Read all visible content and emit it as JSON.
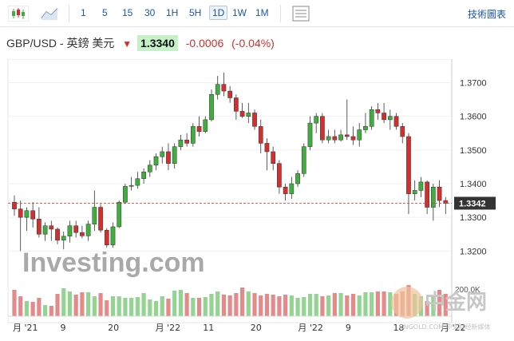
{
  "toolbar": {
    "chart_type_icon": "candlestick-icon",
    "area_icon": "area-chart-icon",
    "intervals": [
      "1",
      "5",
      "15",
      "30",
      "1H",
      "5H",
      "1D",
      "1W",
      "1M"
    ],
    "active_interval": "1D",
    "settings_icon": "grid-settings-icon",
    "technical_label": "技術圖表"
  },
  "quote": {
    "name": "GBP/USD - 英鎊 美元",
    "price": "1.3340",
    "change": "-0.0006",
    "change_pct": "(-0.04%)",
    "direction": "down"
  },
  "colors": {
    "up": "#3fae3f",
    "down": "#d32f2f",
    "vol_up": "#93d493",
    "vol_down": "#e58a8a"
  },
  "watermark": {
    "logo": "Investing.com",
    "site": "中金网",
    "site_sub": "CNGOLD.COM 中文财经新媒体"
  },
  "chart_data": {
    "type": "candlestick",
    "y_ticks": [
      "1.3700",
      "1.3600",
      "1.3500",
      "1.3400",
      "1.3300",
      "1.3200"
    ],
    "ylim": [
      1.317,
      1.377
    ],
    "last_price_label": "1.3342",
    "last_price": 1.3342,
    "volume_label": "200.0K",
    "x_labels": [
      "月 '21",
      "9",
      "20",
      "月 '22",
      "11",
      "20",
      "月 '22",
      "9",
      "18",
      "月 '22"
    ],
    "candles": [
      [
        1.3345,
        1.3365,
        1.3305,
        1.3325
      ],
      [
        1.3325,
        1.335,
        1.32,
        1.33
      ],
      [
        1.33,
        1.333,
        1.326,
        1.332
      ],
      [
        1.332,
        1.3345,
        1.327,
        1.3295
      ],
      [
        1.3295,
        1.333,
        1.324,
        1.325
      ],
      [
        1.325,
        1.3285,
        1.323,
        1.3275
      ],
      [
        1.3275,
        1.329,
        1.323,
        1.3265
      ],
      [
        1.3265,
        1.327,
        1.322,
        1.3232
      ],
      [
        1.3232,
        1.3258,
        1.3205,
        1.3244
      ],
      [
        1.3244,
        1.329,
        1.3225,
        1.3275
      ],
      [
        1.3275,
        1.329,
        1.324,
        1.3255
      ],
      [
        1.3255,
        1.3275,
        1.3238,
        1.3245
      ],
      [
        1.3245,
        1.329,
        1.323,
        1.328
      ],
      [
        1.328,
        1.338,
        1.326,
        1.333
      ],
      [
        1.333,
        1.334,
        1.3255,
        1.3262
      ],
      [
        1.3262,
        1.3268,
        1.321,
        1.3218
      ],
      [
        1.3218,
        1.3285,
        1.321,
        1.3272
      ],
      [
        1.3272,
        1.335,
        1.3268,
        1.3345
      ],
      [
        1.3345,
        1.34,
        1.334,
        1.3392
      ],
      [
        1.3392,
        1.342,
        1.338,
        1.3395
      ],
      [
        1.3395,
        1.3435,
        1.3385,
        1.3415
      ],
      [
        1.3415,
        1.3445,
        1.34,
        1.3435
      ],
      [
        1.3435,
        1.347,
        1.342,
        1.3455
      ],
      [
        1.3455,
        1.349,
        1.344,
        1.348
      ],
      [
        1.348,
        1.351,
        1.346,
        1.3495
      ],
      [
        1.3495,
        1.352,
        1.344,
        1.346
      ],
      [
        1.346,
        1.352,
        1.3445,
        1.351
      ],
      [
        1.351,
        1.3545,
        1.35,
        1.353
      ],
      [
        1.353,
        1.355,
        1.351,
        1.352
      ],
      [
        1.352,
        1.358,
        1.351,
        1.357
      ],
      [
        1.357,
        1.36,
        1.354,
        1.3555
      ],
      [
        1.3555,
        1.36,
        1.355,
        1.359
      ],
      [
        1.359,
        1.368,
        1.3585,
        1.3665
      ],
      [
        1.3665,
        1.372,
        1.365,
        1.3695
      ],
      [
        1.3695,
        1.373,
        1.366,
        1.3675
      ],
      [
        1.3675,
        1.369,
        1.364,
        1.3655
      ],
      [
        1.3655,
        1.3665,
        1.359,
        1.3615
      ],
      [
        1.3615,
        1.364,
        1.3595,
        1.36
      ],
      [
        1.36,
        1.364,
        1.358,
        1.361
      ],
      [
        1.361,
        1.362,
        1.356,
        1.357
      ],
      [
        1.357,
        1.359,
        1.349,
        1.352
      ],
      [
        1.352,
        1.3535,
        1.344,
        1.3495
      ],
      [
        1.3495,
        1.351,
        1.344,
        1.346
      ],
      [
        1.346,
        1.347,
        1.337,
        1.339
      ],
      [
        1.339,
        1.34,
        1.335,
        1.337
      ],
      [
        1.337,
        1.342,
        1.3355,
        1.34
      ],
      [
        1.34,
        1.344,
        1.339,
        1.343
      ],
      [
        1.343,
        1.352,
        1.342,
        1.351
      ],
      [
        1.351,
        1.36,
        1.35,
        1.358
      ],
      [
        1.358,
        1.361,
        1.355,
        1.36
      ],
      [
        1.36,
        1.361,
        1.352,
        1.353
      ],
      [
        1.353,
        1.356,
        1.352,
        1.354
      ],
      [
        1.354,
        1.356,
        1.352,
        1.353
      ],
      [
        1.353,
        1.356,
        1.3525,
        1.3545
      ],
      [
        1.3545,
        1.365,
        1.353,
        1.354
      ],
      [
        1.354,
        1.357,
        1.3515,
        1.353
      ],
      [
        1.353,
        1.358,
        1.351,
        1.356
      ],
      [
        1.356,
        1.361,
        1.355,
        1.357
      ],
      [
        1.357,
        1.363,
        1.356,
        1.362
      ],
      [
        1.362,
        1.364,
        1.359,
        1.361
      ],
      [
        1.361,
        1.364,
        1.358,
        1.359
      ],
      [
        1.359,
        1.362,
        1.356,
        1.36
      ],
      [
        1.36,
        1.361,
        1.356,
        1.357
      ],
      [
        1.357,
        1.358,
        1.352,
        1.354
      ],
      [
        1.354,
        1.355,
        1.331,
        1.337
      ],
      [
        1.337,
        1.341,
        1.335,
        1.338
      ],
      [
        1.338,
        1.342,
        1.336,
        1.3405
      ],
      [
        1.3405,
        1.341,
        1.331,
        1.333
      ],
      [
        1.333,
        1.34,
        1.329,
        1.339
      ],
      [
        1.339,
        1.341,
        1.333,
        1.335
      ],
      [
        1.335,
        1.336,
        1.331,
        1.3342
      ]
    ],
    "volumes": [
      0.66,
      0.5,
      0.38,
      0.36,
      0.46,
      0.28,
      0.26,
      0.56,
      0.7,
      0.62,
      0.54,
      0.6,
      0.6,
      0.5,
      0.58,
      0.4,
      0.5,
      0.5,
      0.46,
      0.46,
      0.48,
      0.58,
      0.42,
      0.38,
      0.5,
      0.44,
      0.64,
      0.66,
      0.58,
      0.46,
      0.46,
      0.48,
      0.56,
      0.62,
      0.54,
      0.52,
      0.58,
      0.72,
      0.62,
      0.58,
      0.52,
      0.56,
      0.54,
      0.5,
      0.54,
      0.52,
      0.46,
      0.48,
      0.56,
      0.56,
      0.5,
      0.52,
      0.58,
      0.58,
      0.52,
      0.56,
      0.52,
      0.6,
      0.6,
      0.62,
      0.62,
      0.6,
      0.56,
      0.62,
      0.78,
      0.56,
      0.5,
      0.38,
      0.52,
      0.66,
      0.56
    ]
  }
}
